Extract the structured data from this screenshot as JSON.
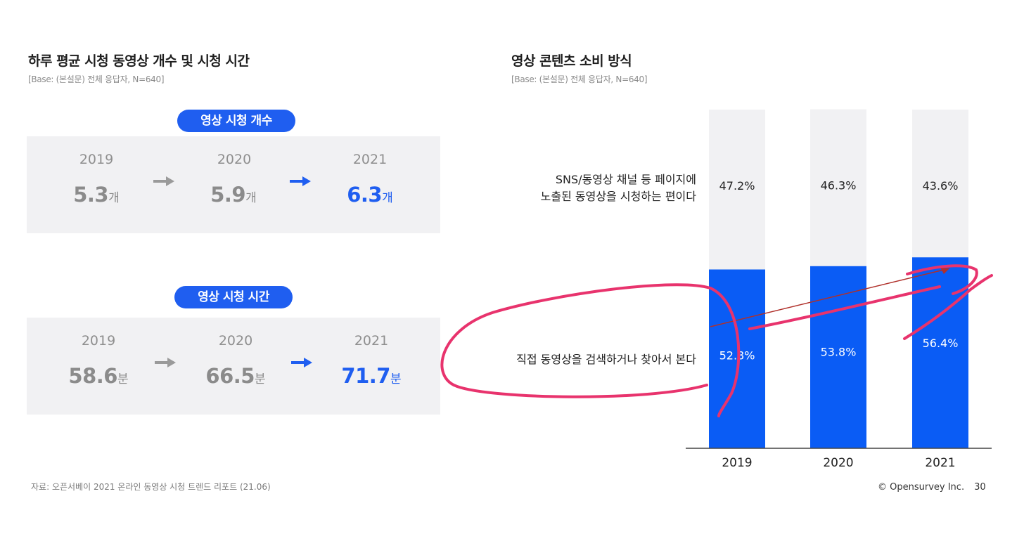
{
  "left": {
    "title": "하루 평균 시청 동영상 개수 및 시청 시간",
    "base": "[Base: (본설문) 전체 응답자, N=640]",
    "count_section": {
      "badge": "영상 시청 개수",
      "items": [
        {
          "year": "2019",
          "value": "5.3",
          "unit": "개"
        },
        {
          "year": "2020",
          "value": "5.9",
          "unit": "개"
        },
        {
          "year": "2021",
          "value": "6.3",
          "unit": "개"
        }
      ]
    },
    "time_section": {
      "badge": "영상 시청 시간",
      "items": [
        {
          "year": "2019",
          "value": "58.6",
          "unit": "분"
        },
        {
          "year": "2020",
          "value": "66.5",
          "unit": "분"
        },
        {
          "year": "2021",
          "value": "71.7",
          "unit": "분"
        }
      ]
    },
    "source": "자료: 오픈서베이 2021 온라인 동영상 시청 트렌드 리포트 (21.06)"
  },
  "right": {
    "title": "영상 콘텐츠 소비 방식",
    "base": "[Base: (본설문) 전체 응답자, N=640]",
    "top_label_line1": "SNS/동영상 채널 등 페이지에",
    "top_label_line2": "노출된 동영상을 시청하는 편이다",
    "bottom_label": "직접 동영상을 검색하거나 찾아서 본다"
  },
  "chart_data": {
    "type": "bar",
    "stacked": true,
    "categories": [
      "2019",
      "2020",
      "2021"
    ],
    "series": [
      {
        "name": "직접 동영상을 검색하거나 찾아서 본다",
        "values": [
          52.8,
          53.8,
          56.4
        ],
        "labels": [
          "52.8%",
          "53.8%",
          "56.4%"
        ],
        "color": "#0a5cf5"
      },
      {
        "name": "SNS/동영상 채널 등 페이지에 노출된 동영상을 시청하는 편이다",
        "values": [
          47.2,
          46.3,
          43.6
        ],
        "labels": [
          "47.2%",
          "46.3%",
          "43.6%"
        ],
        "color": "#f1f1f3"
      }
    ],
    "ylim": [
      0,
      100
    ]
  },
  "colors": {
    "accent": "#1f5ef0",
    "bar_blue": "#0a5cf5",
    "bar_gray": "#f1f1f3",
    "annotation_pink": "#e8336d",
    "annotation_red": "#b0302a"
  },
  "copyright": "© Opensurvey Inc.",
  "page_number": "30"
}
